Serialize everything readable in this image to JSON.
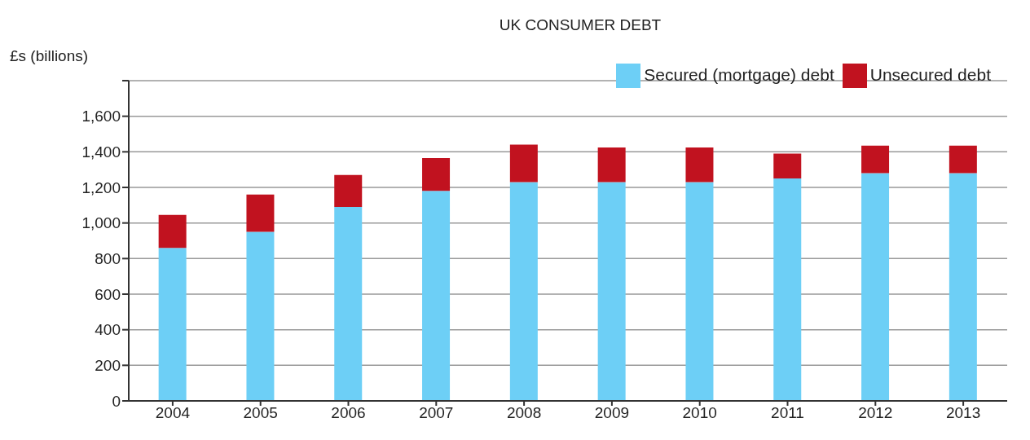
{
  "chart_data": {
    "type": "bar",
    "title": "UK CONSUMER DEBT",
    "ylabel": "£s (billions)",
    "categories": [
      "2004",
      "2005",
      "2006",
      "2007",
      "2008",
      "2009",
      "2010",
      "2011",
      "2012",
      "2013"
    ],
    "stacked": true,
    "series": [
      {
        "name": "Secured (mortgage) debt",
        "color": "#6dcff6",
        "values": [
          860,
          950,
          1090,
          1180,
          1230,
          1230,
          1230,
          1250,
          1280,
          1280
        ]
      },
      {
        "name": "Unsecured debt",
        "color": "#c1121f",
        "values": [
          185,
          210,
          180,
          185,
          210,
          195,
          195,
          140,
          155,
          155
        ]
      }
    ],
    "ylim": [
      0,
      1800
    ],
    "yticks": [
      0,
      {
        "value": 200,
        "label": "200"
      },
      {
        "value": 400,
        "label": "400"
      },
      {
        "value": 600,
        "label": "600"
      },
      {
        "value": 800,
        "label": "800"
      },
      {
        "value": 1000,
        "label": "1,000"
      },
      {
        "value": 1200,
        "label": "1,200"
      },
      {
        "value": 1400,
        "label": "1,400"
      },
      {
        "value": 1600,
        "label": "1,600"
      },
      {
        "value": 1800,
        "label": null
      }
    ],
    "grid": "y",
    "legend": "top right"
  }
}
